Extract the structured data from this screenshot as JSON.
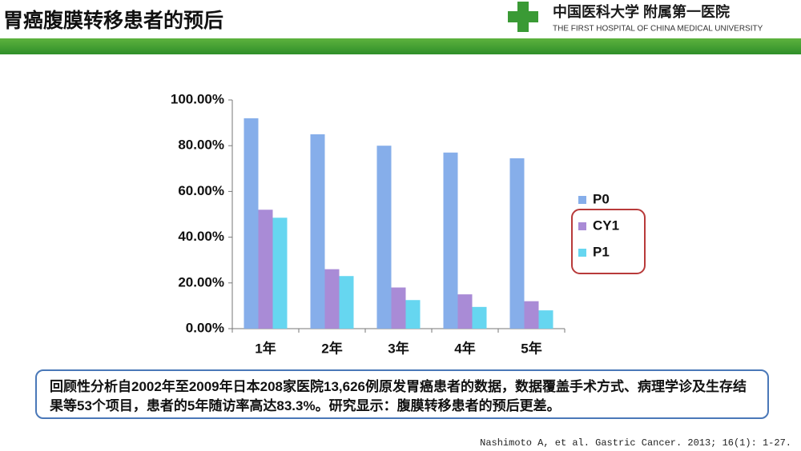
{
  "header": {
    "title": "胃癌腹膜转移患者的预后",
    "logo_cn": "中国医科大学 附属第一医院",
    "logo_en": "THE FIRST HOSPITAL OF CHINA MEDICAL UNIVERSITY"
  },
  "chart_data": {
    "type": "bar",
    "categories": [
      "1年",
      "2年",
      "3年",
      "4年",
      "5年"
    ],
    "series": [
      {
        "name": "P0",
        "color": "#86aeea",
        "values": [
          92,
          85,
          80,
          77,
          74.5
        ]
      },
      {
        "name": "CY1",
        "color": "#a98bd6",
        "values": [
          52,
          26,
          18,
          15,
          12
        ]
      },
      {
        "name": "P1",
        "color": "#66d6f0",
        "values": [
          48.5,
          23,
          12.5,
          9.5,
          8
        ]
      }
    ],
    "ylim": [
      0,
      100
    ],
    "yticks": [
      {
        "value": 0,
        "label": "0.00%"
      },
      {
        "value": 20,
        "label": "20.00%"
      },
      {
        "value": 40,
        "label": "40.00%"
      },
      {
        "value": 60,
        "label": "60.00%"
      },
      {
        "value": 80,
        "label": "80.00%"
      },
      {
        "value": 100,
        "label": "100.00%"
      }
    ],
    "grid": false,
    "legend": "right"
  },
  "note": "回顾性分析自2002年至2009年日本208家医院13,626例原发胃癌患者的数据，数据覆盖手术方式、病理学诊及生存结果等53个项目，患者的5年随访率高达83.3%。研究显示：腹膜转移患者的预后更差。",
  "citation": "Nashimoto A, et al. Gastric Cancer. 2013; 16(1): 1-27."
}
